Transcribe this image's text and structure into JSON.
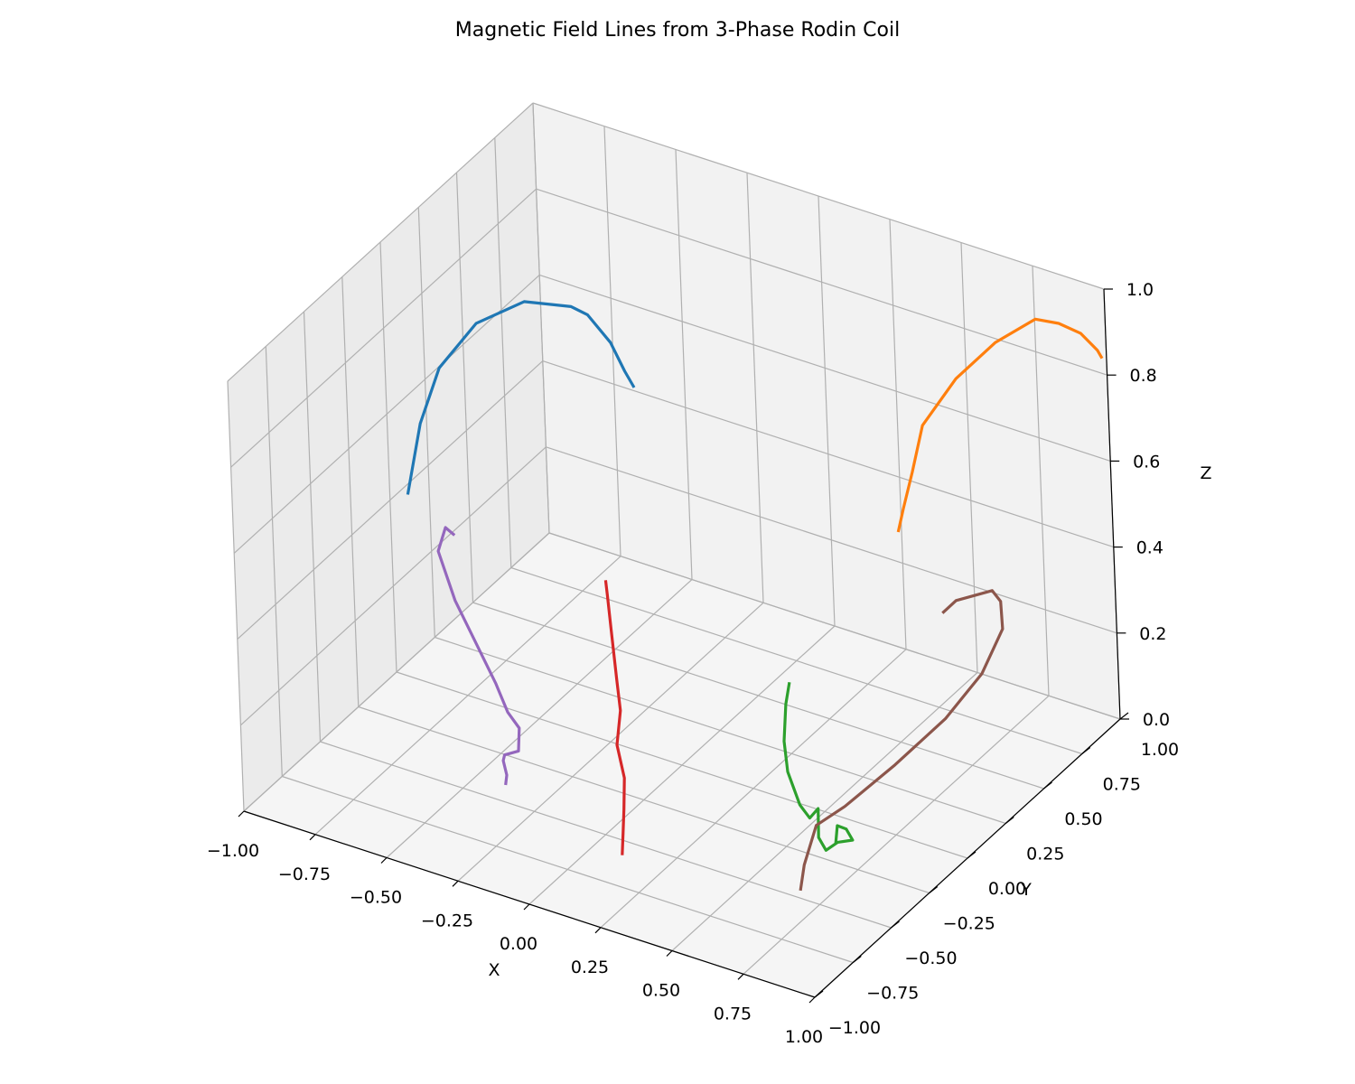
{
  "chart_data": {
    "type": "line3d",
    "title": "Magnetic Field Lines from 3-Phase Rodin Coil",
    "xlabel": "X",
    "ylabel": "Y",
    "zlabel": "Z",
    "xlim": [
      -1,
      1
    ],
    "ylim": [
      -1,
      1
    ],
    "zlim": [
      0,
      1
    ],
    "grid": true,
    "x_ticks": [
      "−1.00",
      "−0.75",
      "−0.50",
      "−0.25",
      "0.00",
      "0.25",
      "0.50",
      "0.75",
      "1.00"
    ],
    "y_ticks": [
      "−1.00",
      "−0.75",
      "−0.50",
      "−0.25",
      "0.00",
      "0.25",
      "0.50",
      "0.75",
      "1.00"
    ],
    "z_ticks": [
      "0.0",
      "0.2",
      "0.4",
      "0.6",
      "0.8",
      "1.0"
    ],
    "series": [
      {
        "color": "#1f77b4",
        "points": [
          [
            -0.97,
            0.06,
            0.4
          ],
          [
            -0.95,
            0.12,
            0.55
          ],
          [
            -0.92,
            0.2,
            0.66
          ],
          [
            -0.85,
            0.32,
            0.74
          ],
          [
            -0.75,
            0.45,
            0.77
          ],
          [
            -0.64,
            0.55,
            0.75
          ],
          [
            -0.6,
            0.58,
            0.73
          ],
          [
            -0.55,
            0.63,
            0.66
          ],
          [
            -0.52,
            0.66,
            0.59
          ],
          [
            -0.5,
            0.68,
            0.55
          ]
        ]
      },
      {
        "color": "#ff7f0e",
        "points": [
          [
            0.49,
            0.55,
            0.47
          ],
          [
            0.5,
            0.57,
            0.52
          ],
          [
            0.52,
            0.6,
            0.6
          ],
          [
            0.54,
            0.64,
            0.7
          ],
          [
            0.62,
            0.72,
            0.8
          ],
          [
            0.72,
            0.8,
            0.88
          ],
          [
            0.82,
            0.88,
            0.93
          ],
          [
            0.88,
            0.92,
            0.92
          ],
          [
            0.94,
            0.95,
            0.9
          ],
          [
            0.98,
            0.98,
            0.86
          ],
          [
            0.99,
            0.99,
            0.84
          ]
        ]
      },
      {
        "color": "#2ca02c",
        "points": [
          [
            0.42,
            -0.05,
            0.3
          ],
          [
            0.41,
            -0.06,
            0.25
          ],
          [
            0.41,
            -0.08,
            0.17
          ],
          [
            0.43,
            -0.1,
            0.11
          ],
          [
            0.48,
            -0.12,
            0.05
          ],
          [
            0.53,
            -0.15,
            0.04
          ],
          [
            0.55,
            -0.13,
            0.06
          ],
          [
            0.57,
            -0.17,
            0.01
          ],
          [
            0.6,
            -0.18,
            -0.01
          ],
          [
            0.62,
            -0.14,
            0.0
          ],
          [
            0.64,
            -0.08,
            -0.01
          ],
          [
            0.63,
            -0.1,
            0.02
          ],
          [
            0.61,
            -0.12,
            0.03
          ],
          [
            0.63,
            -0.17,
            0.01
          ]
        ]
      },
      {
        "color": "#d62728",
        "points": [
          [
            -0.28,
            0.06,
            0.35
          ],
          [
            -0.27,
            0.05,
            0.32
          ],
          [
            -0.25,
            0.03,
            0.25
          ],
          [
            -0.22,
            0.0,
            0.15
          ],
          [
            -0.2,
            -0.02,
            0.09
          ],
          [
            -0.2,
            -0.05,
            0.02
          ],
          [
            -0.15,
            -0.1,
            -0.03
          ],
          [
            -0.1,
            -0.2,
            -0.06
          ],
          [
            -0.05,
            -0.3,
            -0.07
          ],
          [
            0.0,
            -0.4,
            -0.08
          ]
        ]
      },
      {
        "color": "#9467bd",
        "points": [
          [
            -0.86,
            0.15,
            0.3
          ],
          [
            -0.88,
            0.13,
            0.32
          ],
          [
            -0.92,
            0.15,
            0.25
          ],
          [
            -0.85,
            0.12,
            0.16
          ],
          [
            -0.65,
            0.0,
            0.05
          ],
          [
            -0.6,
            -0.02,
            0.0
          ],
          [
            -0.55,
            -0.04,
            -0.02
          ],
          [
            -0.55,
            -0.05,
            -0.07
          ],
          [
            -0.6,
            -0.05,
            -0.09
          ],
          [
            -0.6,
            -0.06,
            -0.1
          ],
          [
            -0.55,
            -0.13,
            -0.1
          ],
          [
            -0.55,
            -0.14,
            -0.12
          ]
        ]
      },
      {
        "color": "#8c564b",
        "points": [
          [
            0.72,
            0.4,
            0.38
          ],
          [
            0.77,
            0.4,
            0.42
          ],
          [
            0.86,
            0.47,
            0.44
          ],
          [
            0.9,
            0.45,
            0.43
          ],
          [
            0.92,
            0.42,
            0.38
          ],
          [
            0.88,
            0.35,
            0.29
          ],
          [
            0.8,
            0.25,
            0.2
          ],
          [
            0.7,
            0.1,
            0.12
          ],
          [
            0.6,
            -0.05,
            0.05
          ],
          [
            0.58,
            -0.2,
            0.05
          ],
          [
            0.56,
            -0.25,
            -0.03
          ],
          [
            0.56,
            -0.28,
            -0.08
          ]
        ]
      }
    ]
  }
}
